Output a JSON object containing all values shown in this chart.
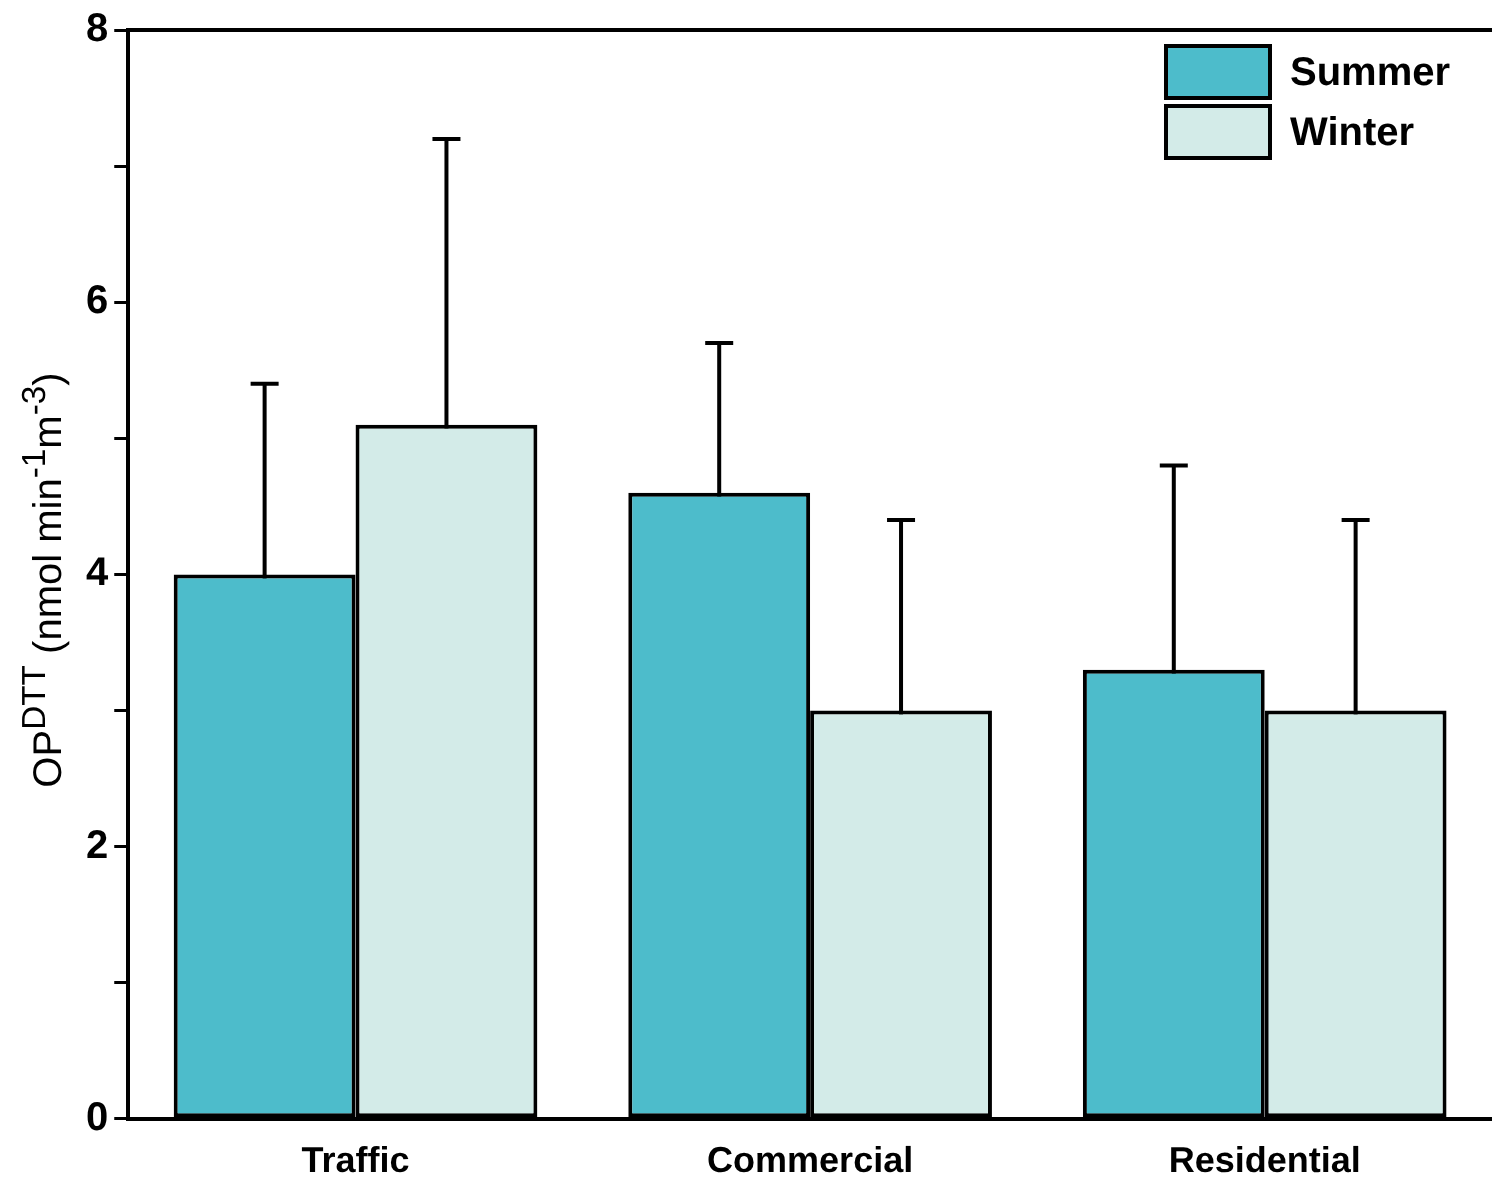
{
  "chart_data": {
    "type": "bar",
    "ylabel": "OP$^{DTT}$ (nmol min$^{-1}$m$^{-3}$)",
    "categories": [
      "Traffic",
      "Commercial",
      "Residential"
    ],
    "series": [
      {
        "name": "Summer",
        "color": "#4dbccb",
        "values": [
          4.0,
          4.6,
          3.3
        ],
        "errors": [
          1.4,
          1.1,
          1.5
        ]
      },
      {
        "name": "Winter",
        "color": "#d3ebe8",
        "values": [
          5.1,
          3.0,
          3.0
        ],
        "errors": [
          2.1,
          1.4,
          1.4
        ]
      }
    ],
    "ylim": [
      0,
      8
    ],
    "yticks": [
      0,
      {
        "value": 1,
        "label": null
      },
      2,
      {
        "value": 3,
        "label": null
      },
      4,
      {
        "value": 5,
        "label": null
      },
      6,
      {
        "value": 7,
        "label": null
      },
      8
    ],
    "grid": false,
    "legend": "top right"
  }
}
